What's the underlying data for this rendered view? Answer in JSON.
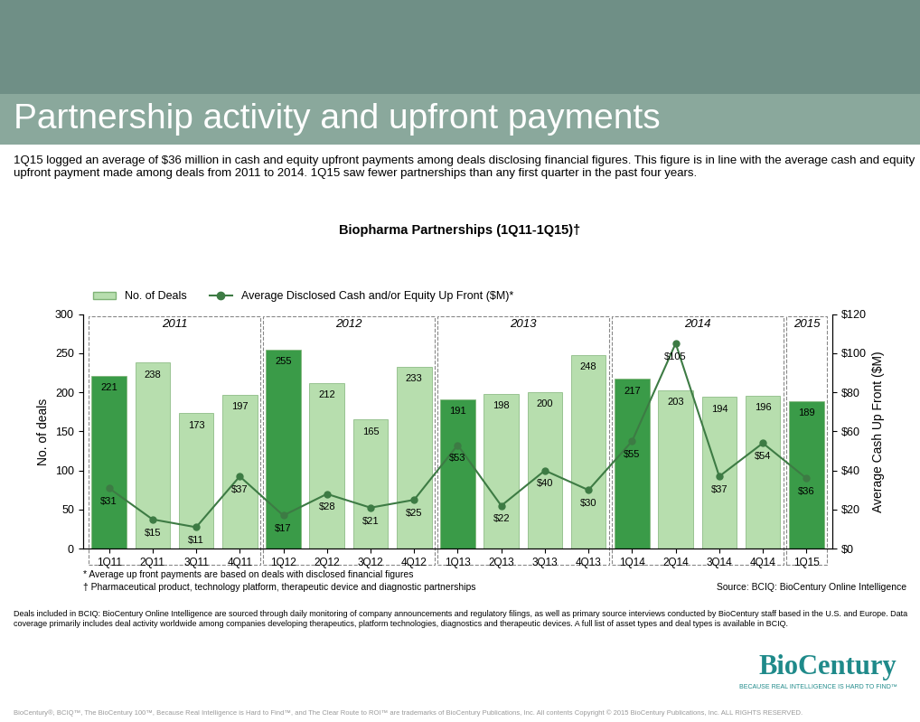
{
  "header": {
    "title": "Partnership activity and upfront payments",
    "text": "1Q15 logged an average of $36 million in cash and equity upfront payments among deals disclosing financial figures. This figure is in line with the average cash and equity upfront payment made among deals from 2011 to 2014. 1Q15 saw fewer partnerships than any first quarter in the past four years."
  },
  "chart_data": {
    "type": "bar",
    "title": "Biopharma Partnerships (1Q11-1Q15)†",
    "y_label": "No. of deals",
    "y2_label": "Average Cash Up Front ($M)",
    "categories": [
      "1Q11",
      "2Q11",
      "3Q11",
      "4Q11",
      "1Q12",
      "2Q12",
      "3Q12",
      "4Q12",
      "1Q13",
      "2Q13",
      "3Q13",
      "4Q13",
      "1Q14",
      "2Q14",
      "3Q14",
      "4Q14",
      "1Q15"
    ],
    "groups": [
      {
        "label": "2011",
        "categories": [
          "1Q11",
          "2Q11",
          "3Q11",
          "4Q11"
        ]
      },
      {
        "label": "2012",
        "categories": [
          "1Q12",
          "2Q12",
          "3Q12",
          "4Q12"
        ]
      },
      {
        "label": "2013",
        "categories": [
          "1Q13",
          "2Q13",
          "3Q13",
          "4Q13"
        ]
      },
      {
        "label": "2014",
        "categories": [
          "1Q14",
          "2Q14",
          "3Q14",
          "4Q14"
        ]
      },
      {
        "label": "2015",
        "categories": [
          "1Q15"
        ]
      }
    ],
    "series": [
      {
        "name": "No. of Deals",
        "type": "bar",
        "color": "#b7deae",
        "colors": [
          "#3a9b48",
          "#b7deae",
          "#b7deae",
          "#b7deae",
          "#3a9b48",
          "#b7deae",
          "#b7deae",
          "#b7deae",
          "#3a9b48",
          "#b7deae",
          "#b7deae",
          "#b7deae",
          "#3a9b48",
          "#b7deae",
          "#b7deae",
          "#b7deae",
          "#3a9b48"
        ],
        "values": [
          221,
          238,
          173,
          197,
          255,
          212,
          165,
          233,
          191,
          198,
          200,
          248,
          217,
          203,
          194,
          196,
          189
        ]
      },
      {
        "name": "Average Disclosed Cash and/or Equity Up Front ($M)*",
        "type": "line",
        "axis": "y2",
        "color": "#3d7b44",
        "marker": "o",
        "line_style": "solid",
        "values": [
          31,
          15,
          11,
          37,
          17,
          28,
          21,
          25,
          53,
          22,
          40,
          30,
          55,
          105,
          37,
          54,
          36
        ],
        "value_labels": [
          "$31",
          "$15",
          "$11",
          "$37",
          "$17",
          "$28",
          "$21",
          "$25",
          "$53",
          "$22",
          "$40",
          "$30",
          "$55",
          "$105",
          "$37",
          "$54",
          "$36"
        ]
      }
    ],
    "ylim": [
      0,
      300
    ],
    "yticks": [
      0,
      50,
      100,
      150,
      200,
      250,
      300
    ],
    "y2lim": [
      0,
      120
    ],
    "y2ticks": [
      {
        "value": 0,
        "label": "$0"
      },
      {
        "value": 20,
        "label": "$20"
      },
      {
        "value": 40,
        "label": "$40"
      },
      {
        "value": 60,
        "label": "$60"
      },
      {
        "value": 80,
        "label": "$80"
      },
      {
        "value": 100,
        "label": "$100"
      },
      {
        "value": 120,
        "label": "$120"
      }
    ],
    "legend": "upper left",
    "data_labels": true,
    "grid": false,
    "footnotes": [
      "* Average up front payments are based on deals with disclosed financial figures",
      "† Pharmaceutical product, technology platform, therapeutic device and diagnostic partnerships"
    ],
    "source": "Source: BCIQ: BioCentury Online Intelligence"
  },
  "footer": {
    "text": "Deals included in BCIQ: BioCentury Online Intelligence are sourced through daily monitoring of company announcements and regulatory filings, as well as primary source interviews conducted by BioCentury staff based in the U.S. and Europe. Data coverage primarily includes deal activity worldwide among companies developing therapeutics, platform technologies, diagnostics and therapeutic devices. A full list of asset types and deal types is available in BCIQ.",
    "copyright": "BioCentury®, BCIQ™, The BioCentury 100™, Because Real Intelligence is Hard to Find™, and The Clear Route to ROI™ are trademarks of BioCentury Publications, Inc. All contents Copyright © 2015 BioCentury Publications, Inc. ALL RIGHTS RESERVED.",
    "logo": "BioCentury",
    "tagline": "BECAUSE REAL INTELLIGENCE IS HARD TO FIND™"
  }
}
